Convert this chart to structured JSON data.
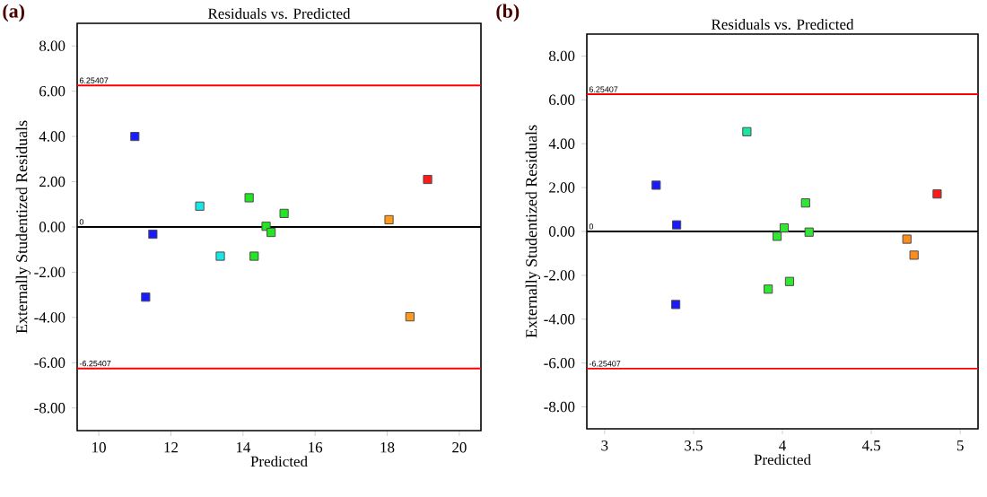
{
  "chart_data": [
    {
      "type": "scatter",
      "title": "Residuals vs. Predicted",
      "xlabel": "Predicted",
      "ylabel": "Externally Studentized Residuals",
      "annotations": [
        "(a)"
      ],
      "marker": "square",
      "grid": false,
      "xlim": [
        9.4,
        20.6
      ],
      "ylim": [
        -9,
        9
      ],
      "xticks": [
        10,
        12,
        14,
        16,
        18,
        20
      ],
      "yticks": [
        {
          "value": -8,
          "label": "-8.00"
        },
        {
          "value": -6,
          "label": "-6.00"
        },
        {
          "value": -4,
          "label": "-4.00"
        },
        {
          "value": -2,
          "label": "-2.00"
        },
        {
          "value": 0,
          "label": "0.00"
        },
        {
          "value": 2,
          "label": "2.00"
        },
        {
          "value": 4,
          "label": "4.00"
        },
        {
          "value": 6,
          "label": "6.00"
        },
        {
          "value": 8,
          "label": "8.00"
        }
      ],
      "ref_lines": [
        {
          "axis": "y",
          "value": 6.25407,
          "label": "6.25407",
          "color": "#ff0000"
        },
        {
          "axis": "y",
          "value": 0,
          "label": "0",
          "color": "#000000"
        },
        {
          "axis": "y",
          "value": -6.25407,
          "label": "-6.25407",
          "color": "#ff0000"
        }
      ],
      "series": [
        {
          "color": "#1a1aff",
          "x": [
            11.0,
            11.5,
            11.3
          ],
          "values": [
            4.0,
            -0.32,
            -3.1
          ]
        },
        {
          "color": "#1ae6e6",
          "x": [
            12.8,
            13.37
          ],
          "values": [
            0.92,
            -1.29
          ]
        },
        {
          "color": "#22e622",
          "x": [
            14.17,
            14.31,
            14.64,
            14.78,
            15.14
          ],
          "values": [
            1.29,
            -1.29,
            0.03,
            -0.24,
            0.6
          ]
        },
        {
          "color": "#ff9a1a",
          "x": [
            18.05,
            18.63
          ],
          "values": [
            0.32,
            -3.97
          ]
        },
        {
          "color": "#ff1a1a",
          "x": [
            19.12
          ],
          "values": [
            2.1
          ]
        }
      ]
    },
    {
      "type": "scatter",
      "title": "Residuals vs. Predicted",
      "xlabel": "Predicted",
      "ylabel": "Externally Studentized Residuals",
      "annotations": [
        "(b)"
      ],
      "marker": "square",
      "grid": false,
      "xlim": [
        2.9,
        5.1
      ],
      "ylim": [
        -9,
        9
      ],
      "xticks": [
        3,
        3.5,
        4,
        4.5,
        5
      ],
      "yticks": [
        {
          "value": -8,
          "label": "-8.00"
        },
        {
          "value": -6,
          "label": "-6.00"
        },
        {
          "value": -4,
          "label": "-4.00"
        },
        {
          "value": -2,
          "label": "-2.00"
        },
        {
          "value": 0,
          "label": "0.00"
        },
        {
          "value": 2,
          "label": "2.00"
        },
        {
          "value": 4,
          "label": "4.00"
        },
        {
          "value": 6,
          "label": "6.00"
        },
        {
          "value": 8,
          "label": "8.00"
        }
      ],
      "ref_lines": [
        {
          "axis": "y",
          "value": 6.25407,
          "label": "6.25407",
          "color": "#ff0000"
        },
        {
          "axis": "y",
          "value": 0,
          "label": "0",
          "color": "#000000"
        },
        {
          "axis": "y",
          "value": -6.25407,
          "label": "-6.25407",
          "color": "#ff0000"
        }
      ],
      "series": [
        {
          "color": "#1a1aff",
          "x": [
            3.29,
            3.405,
            3.4
          ],
          "values": [
            2.11,
            0.3,
            -3.33
          ]
        },
        {
          "color": "#1ae6a0",
          "x": [
            3.8
          ],
          "values": [
            4.55
          ]
        },
        {
          "color": "#33e633",
          "x": [
            3.92,
            3.97,
            4.01,
            4.04,
            4.13,
            4.15
          ],
          "values": [
            -2.63,
            -0.22,
            0.16,
            -2.28,
            1.3,
            -0.03
          ]
        },
        {
          "color": "#ff8c1a",
          "x": [
            4.7,
            4.74
          ],
          "values": [
            -0.35,
            -1.08
          ]
        },
        {
          "color": "#ff1a1a",
          "x": [
            4.87
          ],
          "values": [
            1.71
          ]
        }
      ]
    }
  ]
}
